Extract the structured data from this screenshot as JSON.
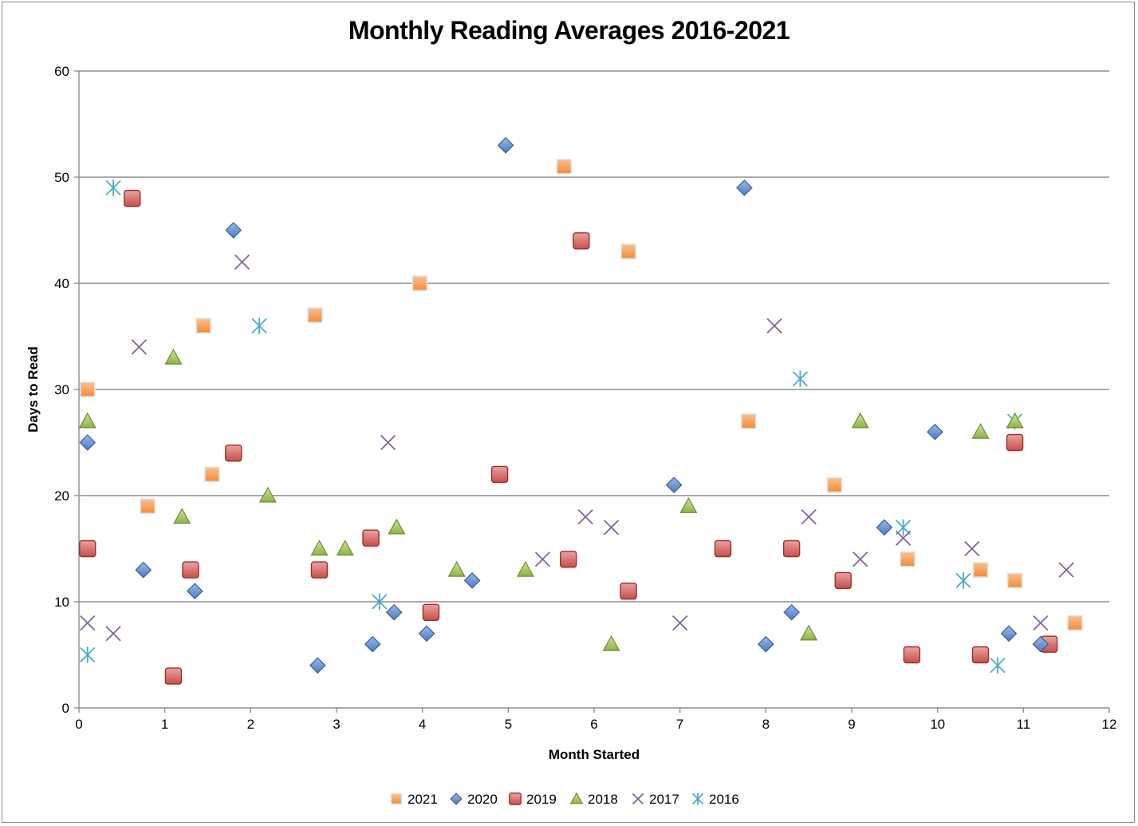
{
  "chart_data": {
    "type": "scatter",
    "title": "Monthly Reading Averages 2016-2021",
    "xlabel": "Month Started",
    "ylabel": "Days to Read",
    "xlim": [
      0,
      12
    ],
    "ylim": [
      0,
      60
    ],
    "xticks": [
      "0",
      "1",
      "2",
      "3",
      "4",
      "5",
      "6",
      "7",
      "8",
      "9",
      "10",
      "11",
      "12"
    ],
    "yticks": [
      "0",
      "10",
      "20",
      "30",
      "40",
      "50",
      "60"
    ],
    "grid": "horizontal",
    "legend_position": "bottom",
    "series": [
      {
        "name": "2021",
        "marker": "square",
        "color": "#f79646",
        "points": [
          [
            0.1,
            30
          ],
          [
            0.8,
            19
          ],
          [
            1.45,
            36
          ],
          [
            1.55,
            22
          ],
          [
            2.75,
            37
          ],
          [
            3.97,
            40
          ],
          [
            5.65,
            51
          ],
          [
            6.4,
            43
          ],
          [
            7.8,
            27
          ],
          [
            8.8,
            21
          ],
          [
            9.65,
            14
          ],
          [
            10.5,
            13
          ],
          [
            10.9,
            12
          ],
          [
            11.6,
            8
          ]
        ]
      },
      {
        "name": "2020",
        "marker": "diamond",
        "color": "#4f81bd",
        "points": [
          [
            0.1,
            25
          ],
          [
            0.75,
            13
          ],
          [
            1.35,
            11
          ],
          [
            1.8,
            45
          ],
          [
            2.78,
            4
          ],
          [
            3.42,
            6
          ],
          [
            3.67,
            9
          ],
          [
            4.05,
            7
          ],
          [
            4.58,
            12
          ],
          [
            4.97,
            53
          ],
          [
            6.93,
            21
          ],
          [
            7.75,
            49
          ],
          [
            8.0,
            6
          ],
          [
            8.3,
            9
          ],
          [
            9.38,
            17
          ],
          [
            9.97,
            26
          ],
          [
            10.83,
            7
          ],
          [
            11.2,
            6
          ]
        ]
      },
      {
        "name": "2019",
        "marker": "rounded-square",
        "color": "#c0504d",
        "points": [
          [
            0.1,
            15
          ],
          [
            0.62,
            48
          ],
          [
            1.1,
            3
          ],
          [
            1.3,
            13
          ],
          [
            1.8,
            24
          ],
          [
            2.8,
            13
          ],
          [
            3.4,
            16
          ],
          [
            4.1,
            9
          ],
          [
            4.9,
            22
          ],
          [
            5.7,
            14
          ],
          [
            5.85,
            44
          ],
          [
            6.4,
            11
          ],
          [
            7.5,
            15
          ],
          [
            8.3,
            15
          ],
          [
            8.9,
            12
          ],
          [
            9.7,
            5
          ],
          [
            10.5,
            5
          ],
          [
            10.9,
            25
          ],
          [
            11.3,
            6
          ]
        ]
      },
      {
        "name": "2018",
        "marker": "triangle",
        "color": "#9bbb59",
        "points": [
          [
            0.1,
            27
          ],
          [
            1.1,
            33
          ],
          [
            1.2,
            18
          ],
          [
            2.2,
            20
          ],
          [
            2.8,
            15
          ],
          [
            3.1,
            15
          ],
          [
            3.7,
            17
          ],
          [
            4.4,
            13
          ],
          [
            5.2,
            13
          ],
          [
            6.2,
            6
          ],
          [
            7.1,
            19
          ],
          [
            8.5,
            7
          ],
          [
            9.1,
            27
          ],
          [
            10.5,
            26
          ],
          [
            10.9,
            27
          ]
        ]
      },
      {
        "name": "2017",
        "marker": "x",
        "color": "#8064a2",
        "points": [
          [
            0.1,
            8
          ],
          [
            0.4,
            7
          ],
          [
            0.7,
            34
          ],
          [
            1.9,
            42
          ],
          [
            3.6,
            25
          ],
          [
            5.4,
            14
          ],
          [
            5.9,
            18
          ],
          [
            6.2,
            17
          ],
          [
            7.0,
            8
          ],
          [
            8.1,
            36
          ],
          [
            8.5,
            18
          ],
          [
            9.1,
            14
          ],
          [
            9.6,
            16
          ],
          [
            10.4,
            15
          ],
          [
            11.2,
            8
          ],
          [
            11.5,
            13
          ]
        ]
      },
      {
        "name": "2016",
        "marker": "asterisk",
        "color": "#4bacc6",
        "points": [
          [
            0.1,
            5
          ],
          [
            0.4,
            49
          ],
          [
            2.1,
            36
          ],
          [
            3.5,
            10
          ],
          [
            8.4,
            31
          ],
          [
            9.6,
            17
          ],
          [
            10.3,
            12
          ],
          [
            10.7,
            4
          ],
          [
            10.9,
            27
          ]
        ]
      }
    ]
  }
}
